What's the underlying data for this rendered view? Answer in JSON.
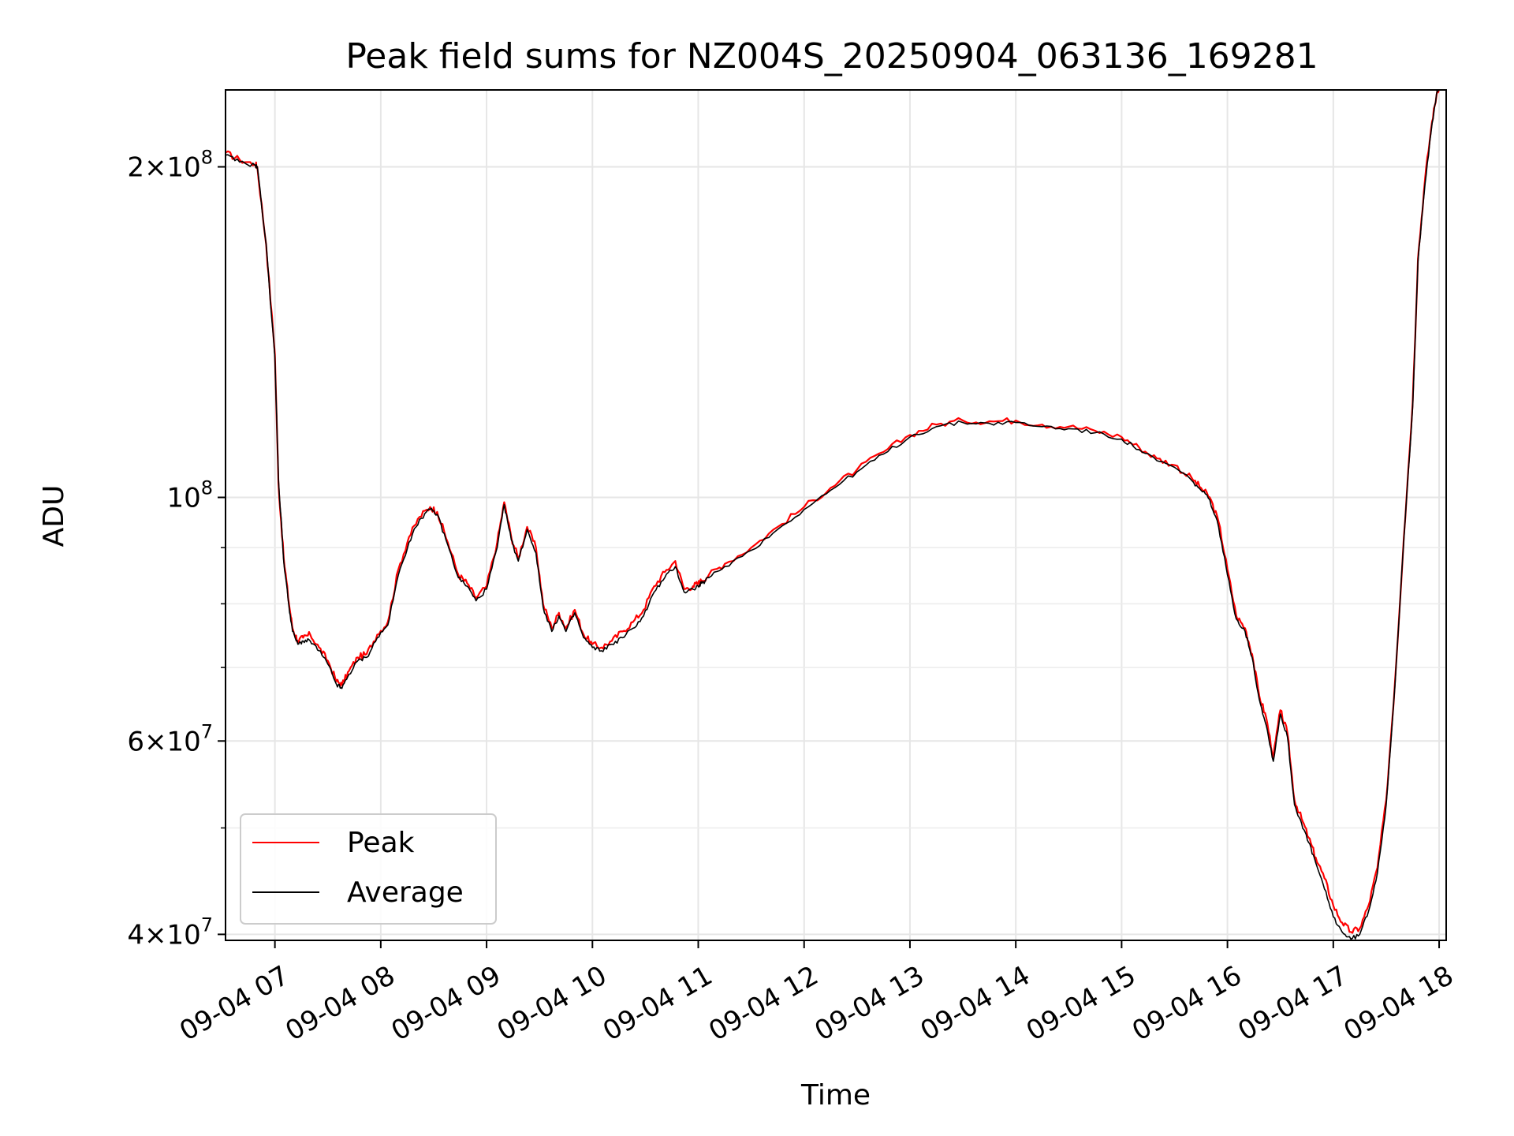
{
  "chart_data": {
    "type": "line",
    "title": "Peak field sums for NZ004S_20250904_063136_169281",
    "xlabel": "Time",
    "ylabel": "ADU",
    "yscale": "log",
    "ylim": [
      39500000,
      235000000
    ],
    "xlim": [
      "2025-09-04 06:32",
      "2025-09-04 18:04"
    ],
    "grid": true,
    "legend_position": "lower-left",
    "x_tick_labels": [
      "09-04 07",
      "09-04 08",
      "09-04 09",
      "09-04 10",
      "09-04 11",
      "09-04 12",
      "09-04 13",
      "09-04 14",
      "09-04 15",
      "09-04 16",
      "09-04 17",
      "09-04 18"
    ],
    "y_tick_labels": [
      {
        "value": 40000000,
        "mantissa": "4",
        "exponent": "7"
      },
      {
        "value": 60000000,
        "mantissa": "6",
        "exponent": "7"
      },
      {
        "value": 100000000,
        "mantissa": "",
        "exponent": "8"
      },
      {
        "value": 200000000,
        "mantissa": "2",
        "exponent": "8"
      }
    ],
    "series": [
      {
        "name": "Peak",
        "color": "#ff0000"
      },
      {
        "name": "Average",
        "color": "#000000"
      }
    ],
    "x": [
      "06:32",
      "06:40",
      "06:49",
      "06:50",
      "06:55",
      "07:00",
      "07:02",
      "07:05",
      "07:08",
      "07:10",
      "07:13",
      "07:16",
      "07:20",
      "07:25",
      "07:30",
      "07:35",
      "07:38",
      "07:42",
      "07:47",
      "07:52",
      "07:58",
      "08:04",
      "08:10",
      "08:16",
      "08:22",
      "08:28",
      "08:32",
      "08:38",
      "08:44",
      "08:49",
      "08:54",
      "09:00",
      "09:06",
      "09:10",
      "09:14",
      "09:18",
      "09:23",
      "09:28",
      "09:32",
      "09:37",
      "09:41",
      "09:45",
      "09:50",
      "09:55",
      "10:00",
      "10:05",
      "10:11",
      "10:17",
      "10:23",
      "10:29",
      "10:35",
      "10:41",
      "10:47",
      "10:52",
      "10:57",
      "11:00",
      "11:02",
      "11:06",
      "11:15",
      "11:30",
      "11:45",
      "12:00",
      "12:15",
      "12:30",
      "12:45",
      "13:00",
      "13:15",
      "13:30",
      "13:45",
      "14:00",
      "14:15",
      "14:30",
      "14:45",
      "15:00",
      "15:10",
      "15:20",
      "15:30",
      "15:40",
      "15:45",
      "15:50",
      "15:55",
      "16:00",
      "16:05",
      "16:10",
      "16:14",
      "16:18",
      "16:22",
      "16:26",
      "16:30",
      "16:34",
      "16:38",
      "16:42",
      "16:46",
      "16:50",
      "16:55",
      "17:00",
      "17:05",
      "17:10",
      "17:15",
      "17:20",
      "17:25",
      "17:30",
      "17:35",
      "17:40",
      "17:45",
      "17:48",
      "17:52",
      "17:56",
      "17:59",
      "18:01",
      "18:04"
    ],
    "peak": [
      206000000,
      203000000,
      201000000,
      200000000,
      170000000,
      135000000,
      103000000,
      88000000,
      80000000,
      76000000,
      74000000,
      74500000,
      75000000,
      73000000,
      71000000,
      68000000,
      67500000,
      69500000,
      71500000,
      72000000,
      75000000,
      77000000,
      86000000,
      92000000,
      96000000,
      98000000,
      97000000,
      91000000,
      85000000,
      83500000,
      81000000,
      83000000,
      91000000,
      99000000,
      92000000,
      88000000,
      94000000,
      90000000,
      80000000,
      76000000,
      78500000,
      76000000,
      79000000,
      75000000,
      73500000,
      73000000,
      74000000,
      75500000,
      77000000,
      79000000,
      83000000,
      85500000,
      87500000,
      82500000,
      83000000,
      83500000,
      84000000,
      85000000,
      87000000,
      90000000,
      94000000,
      98000000,
      102000000,
      106000000,
      110000000,
      114000000,
      116500000,
      117500000,
      117300000,
      117500000,
      116500000,
      116000000,
      115000000,
      113500000,
      111000000,
      108500000,
      107000000,
      104000000,
      102000000,
      100000000,
      95000000,
      86000000,
      78000000,
      76000000,
      72000000,
      66000000,
      63000000,
      58000000,
      64000000,
      61000000,
      53000000,
      51000000,
      49000000,
      47000000,
      45000000,
      42500000,
      41000000,
      40200000,
      40500000,
      42500000,
      46000000,
      53000000,
      68000000,
      92000000,
      122000000,
      165000000,
      195000000,
      220000000,
      235000000,
      237000000,
      237000000
    ],
    "average": [
      205000000,
      202000000,
      200500000,
      200000000,
      170000000,
      134000000,
      104000000,
      87500000,
      79500000,
      75500000,
      73500000,
      74000000,
      74000000,
      72500000,
      70500000,
      67500000,
      67000000,
      69000000,
      71000000,
      71500000,
      74500000,
      76500000,
      85000000,
      91000000,
      95500000,
      97500000,
      96500000,
      90500000,
      84500000,
      83000000,
      80500000,
      82500000,
      90000000,
      98500000,
      91500000,
      87500000,
      93500000,
      89000000,
      79500000,
      75500000,
      78000000,
      75500000,
      78500000,
      74500000,
      73000000,
      72500000,
      73500000,
      74500000,
      76000000,
      78000000,
      82000000,
      84500000,
      86500000,
      82000000,
      82500000,
      83000000,
      83500000,
      84500000,
      86500000,
      89500000,
      93500000,
      97500000,
      101500000,
      105500000,
      109500000,
      113500000,
      116000000,
      117000000,
      116800000,
      117000000,
      116000000,
      115500000,
      114500000,
      113000000,
      110500000,
      108000000,
      106500000,
      103500000,
      101500000,
      99500000,
      94000000,
      85000000,
      77500000,
      75500000,
      71500000,
      65500000,
      62000000,
      57500000,
      63500000,
      60500000,
      52500000,
      50500000,
      48500000,
      46500000,
      44000000,
      41500000,
      40200000,
      39600000,
      40000000,
      42000000,
      45500000,
      52500000,
      67500000,
      91500000,
      121000000,
      164000000,
      193000000,
      219000000,
      235000000,
      237000000,
      237000000
    ]
  }
}
